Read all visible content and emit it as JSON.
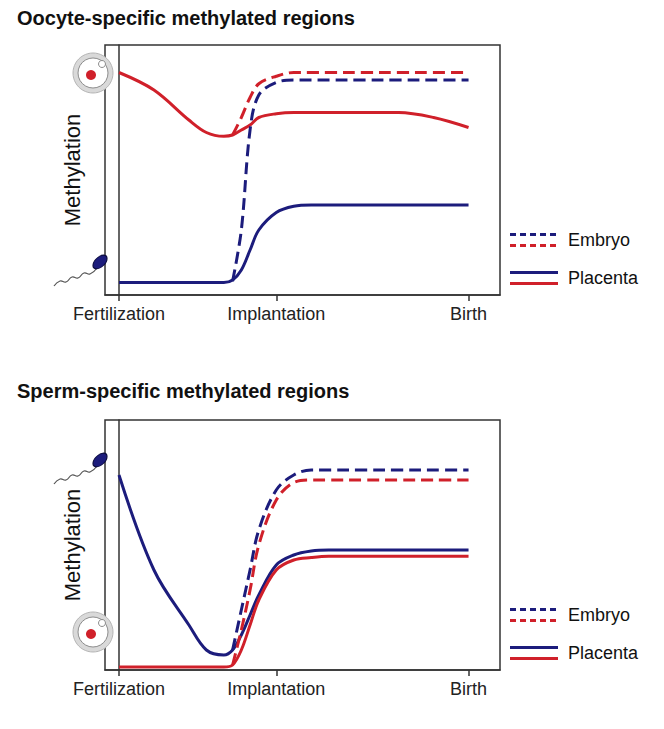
{
  "chart_data": [
    {
      "type": "line",
      "title": "Oocyte-specific methylated regions",
      "y_label": "Methylation",
      "x": [
        0,
        1,
        2,
        2.5,
        3,
        3.25,
        3.5,
        3.75,
        4,
        4.5,
        5,
        5.5,
        6,
        7,
        8,
        9,
        10
      ],
      "xlim": [
        -0.4,
        10.9
      ],
      "xticks": [
        {
          "value": 0,
          "label": "Fertilization"
        },
        {
          "value": 4.5,
          "label": "Implantation"
        },
        {
          "value": 10,
          "label": "Birth"
        }
      ],
      "ylim": [
        0,
        100
      ],
      "yticks": [],
      "tick_labels": "x",
      "grid": false,
      "legend": "right",
      "series": [
        {
          "name": "Embryo",
          "color": "#1c1c7c",
          "line_style": "dashed",
          "values": [
            null,
            null,
            null,
            null,
            null,
            5.5,
            26,
            66,
            80,
            85,
            86,
            86,
            86,
            86,
            86,
            86,
            86
          ]
        },
        {
          "name": "Embryo",
          "color": "#d0202a",
          "line_style": "dashed",
          "values": [
            null,
            null,
            null,
            null,
            null,
            64,
            71,
            79,
            84.5,
            87.5,
            89,
            89,
            89,
            89,
            89,
            89,
            89
          ]
        },
        {
          "name": "Placenta",
          "color": "#1c1c7c",
          "line_style": "solid",
          "values": [
            5,
            5,
            5,
            5,
            5,
            6,
            10,
            18,
            26,
            33,
            35.5,
            36,
            36,
            36,
            36,
            36,
            36
          ]
        },
        {
          "name": "Placenta",
          "color": "#d0202a",
          "line_style": "solid",
          "values": [
            89,
            82,
            70,
            65,
            63.5,
            64,
            66,
            68,
            71,
            72.5,
            73,
            73,
            73,
            73,
            73,
            71,
            67
          ]
        }
      ]
    },
    {
      "type": "line",
      "title": "Sperm-specific methylated regions",
      "y_label": "Methylation",
      "x": [
        0,
        1,
        2,
        2.5,
        3,
        3.25,
        3.5,
        3.75,
        4,
        4.5,
        5,
        5.5,
        6,
        7,
        8,
        9,
        10
      ],
      "xlim": [
        -0.4,
        10.9
      ],
      "xticks": [
        {
          "value": 0,
          "label": "Fertilization"
        },
        {
          "value": 4.5,
          "label": "Implantation"
        },
        {
          "value": 10,
          "label": "Birth"
        }
      ],
      "ylim": [
        0,
        100
      ],
      "yticks": [],
      "tick_labels": "x",
      "grid": false,
      "legend": "right",
      "series": [
        {
          "name": "Embryo",
          "color": "#1c1c7c",
          "line_style": "dashed",
          "values": [
            null,
            null,
            null,
            null,
            null,
            8,
            24,
            40,
            56,
            72,
            78,
            80,
            80,
            80,
            80,
            80,
            80
          ]
        },
        {
          "name": "Embryo",
          "color": "#d0202a",
          "line_style": "dashed",
          "values": [
            null,
            null,
            null,
            null,
            null,
            2,
            16,
            32,
            50,
            68,
            75,
            76,
            76,
            76,
            76,
            76,
            76
          ]
        },
        {
          "name": "Placenta",
          "color": "#1c1c7c",
          "line_style": "solid",
          "values": [
            78,
            40,
            18,
            8,
            6,
            8,
            14,
            22,
            30,
            42,
            46,
            47.6,
            48,
            48,
            48,
            48,
            48
          ]
        },
        {
          "name": "Placenta",
          "color": "#d0202a",
          "line_style": "solid",
          "values": [
            1.2,
            1.2,
            1.2,
            1.2,
            1.2,
            2,
            8,
            18,
            28,
            40,
            44,
            45,
            45.5,
            45.5,
            45.5,
            45.5,
            45.5
          ]
        }
      ]
    }
  ]
}
